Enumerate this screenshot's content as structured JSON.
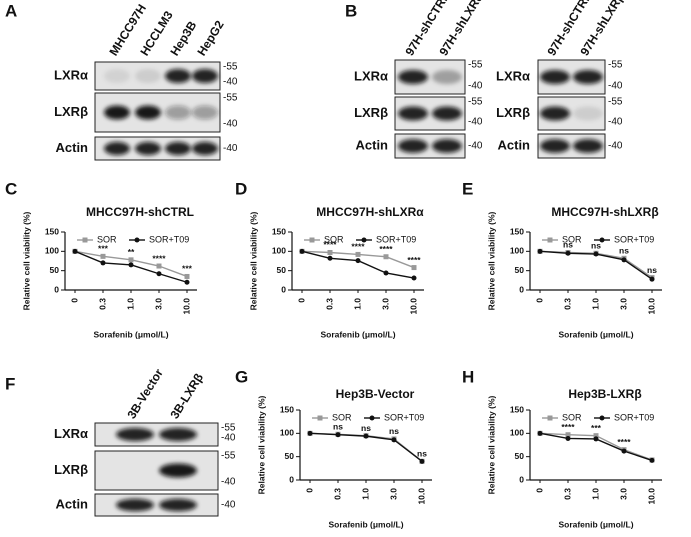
{
  "blots": [
    {
      "panel": "A",
      "lanes": [
        "MHCC97H",
        "HCCLM3",
        "Hep3B",
        "HepG2"
      ],
      "rows": [
        {
          "label": "LXRα",
          "markers": [
            "-55",
            "-40"
          ]
        },
        {
          "label": "LXRβ",
          "markers": [
            "-55",
            "-40"
          ]
        },
        {
          "label": "Actin",
          "markers": [
            "-40"
          ]
        }
      ]
    },
    {
      "panel": "B",
      "lanes": [
        "97H-shCTRL",
        "97H-shLXRα"
      ],
      "rows": [
        {
          "label": "LXRα",
          "markers": [
            "-55",
            "-40"
          ]
        },
        {
          "label": "LXRβ",
          "markers": [
            "-55",
            "-40"
          ]
        },
        {
          "label": "Actin",
          "markers": [
            "-40"
          ]
        }
      ]
    },
    {
      "lanes": [
        "97H-shCTRL",
        "97H-shLXRβ"
      ],
      "rows": [
        {
          "label": "LXRα",
          "markers": [
            "-55",
            "-40"
          ]
        },
        {
          "label": "LXRβ",
          "markers": [
            "-55",
            "-40"
          ]
        },
        {
          "label": "Actin",
          "markers": [
            "-40"
          ]
        }
      ]
    },
    {
      "panel": "F",
      "lanes": [
        "3B-Vector",
        "3B-LXRβ"
      ],
      "rows": [
        {
          "label": "LXRα",
          "markers": [
            "-55",
            "-40"
          ]
        },
        {
          "label": "LXRβ",
          "markers": [
            "-55",
            "-40"
          ]
        },
        {
          "label": "Actin",
          "markers": [
            "-40"
          ]
        }
      ]
    }
  ],
  "chart_data": [
    {
      "panel": "C",
      "type": "line",
      "title": "MHCC97H-shCTRL",
      "categories": [
        "0",
        "0.3",
        "1.0",
        "3.0",
        "10.0"
      ],
      "series": [
        {
          "name": "SOR",
          "color": "#999999",
          "values": [
            100,
            87,
            78,
            62,
            35
          ]
        },
        {
          "name": "SOR+T09",
          "color": "#111111",
          "values": [
            100,
            70,
            65,
            42,
            20
          ]
        }
      ],
      "annotations": [
        null,
        "***",
        "**",
        "****",
        "***"
      ],
      "ylim": [
        0,
        150
      ],
      "yticks": [
        0,
        50,
        100,
        150
      ],
      "xlabel": "Sorafenib (μmol/L)",
      "ylabel": "Relative cell viability (%)"
    },
    {
      "panel": "D",
      "type": "line",
      "title": "MHCC97H-shLXRα",
      "categories": [
        "0",
        "0.3",
        "1.0",
        "3.0",
        "10.0"
      ],
      "series": [
        {
          "name": "SOR",
          "color": "#999999",
          "values": [
            100,
            97,
            92,
            86,
            58
          ]
        },
        {
          "name": "SOR+T09",
          "color": "#111111",
          "values": [
            100,
            82,
            76,
            44,
            31
          ]
        }
      ],
      "annotations": [
        null,
        "****",
        "****",
        "****",
        "****"
      ],
      "ylim": [
        0,
        150
      ],
      "yticks": [
        0,
        50,
        100,
        150
      ],
      "xlabel": "Sorafenib (μmol/L)",
      "ylabel": "Relative cell viability (%)"
    },
    {
      "panel": "E",
      "type": "line",
      "title": "MHCC97H-shLXRβ",
      "categories": [
        "0",
        "0.3",
        "1.0",
        "3.0",
        "10.0"
      ],
      "series": [
        {
          "name": "SOR",
          "color": "#999999",
          "values": [
            100,
            97,
            95,
            82,
            32
          ]
        },
        {
          "name": "SOR+T09",
          "color": "#111111",
          "values": [
            100,
            95,
            93,
            78,
            28
          ]
        }
      ],
      "annotations": [
        null,
        "ns",
        "ns",
        "ns",
        "ns"
      ],
      "ylim": [
        0,
        150
      ],
      "yticks": [
        0,
        50,
        100,
        150
      ],
      "xlabel": "Sorafenib (μmol/L)",
      "ylabel": "Relative cell viability (%)"
    },
    {
      "panel": "G",
      "type": "line",
      "title": "Hep3B-Vector",
      "categories": [
        "0",
        "0.3",
        "1.0",
        "3.0",
        "10.0"
      ],
      "series": [
        {
          "name": "SOR",
          "color": "#999999",
          "values": [
            100,
            98,
            95,
            88,
            40
          ]
        },
        {
          "name": "SOR+T09",
          "color": "#111111",
          "values": [
            100,
            97,
            94,
            86,
            40
          ]
        }
      ],
      "annotations": [
        null,
        "ns",
        "ns",
        "ns",
        "ns"
      ],
      "ylim": [
        0,
        150
      ],
      "yticks": [
        0,
        50,
        100,
        150
      ],
      "xlabel": "Sorafenib (μmol/L)",
      "ylabel": "Relative cell viability (%)"
    },
    {
      "panel": "H",
      "type": "line",
      "title": "Hep3B-LXRβ",
      "categories": [
        "0",
        "0.3",
        "1.0",
        "3.0",
        "10.0"
      ],
      "series": [
        {
          "name": "SOR",
          "color": "#999999",
          "values": [
            100,
            97,
            95,
            65,
            43
          ]
        },
        {
          "name": "SOR+T09",
          "color": "#111111",
          "values": [
            100,
            89,
            88,
            62,
            42
          ]
        }
      ],
      "annotations": [
        null,
        "****",
        "***",
        "****",
        null
      ],
      "ylim": [
        0,
        150
      ],
      "yticks": [
        0,
        50,
        100,
        150
      ],
      "xlabel": "Sorafenib (μmol/L)",
      "ylabel": "Relative cell viability (%)"
    }
  ]
}
